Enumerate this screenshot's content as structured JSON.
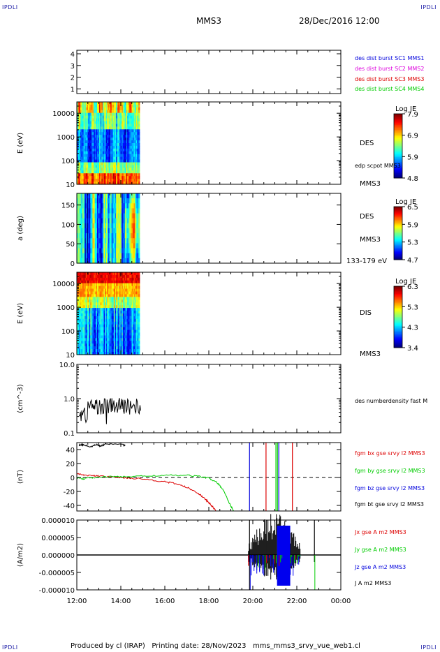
{
  "header": {
    "corner_label": "IPDLI",
    "spacecraft": "MMS3",
    "date": "28/Dec/2016 12:00"
  },
  "footer": {
    "text": "Produced by cl (IRAP)   Printing date: 28/Nov/2023   mms_mms3_srvy_vue_web1.cl"
  },
  "time_axis": {
    "ticks": [
      "12:00",
      "14:00",
      "16:00",
      "18:00",
      "20:00",
      "22:00",
      "00:00"
    ],
    "start_hour": 12,
    "end_hour": 24
  },
  "chart_data": [
    {
      "id": "sc-config",
      "type": "line",
      "yticks": [
        "1",
        "2",
        "3",
        "4"
      ],
      "ylim": [
        0.6,
        4.3
      ],
      "legend": [
        {
          "text": "des dist burst SC1 MMS1",
          "color": "#0000dd"
        },
        {
          "text": "des dist burst SC2 MMS2",
          "color": "#dd00dd"
        },
        {
          "text": "des dist burst SC3 MMS3",
          "color": "#dd0000"
        },
        {
          "text": "des dist burst SC4 MMS4",
          "color": "#00cc00"
        }
      ]
    },
    {
      "id": "des-energy",
      "type": "heatmap",
      "ylabel": "E (eV)",
      "yscale": "log",
      "yticks": [
        "10000",
        "1000",
        "100",
        "10"
      ],
      "ylim": [
        10,
        30000
      ],
      "data_end_hour": 14.85,
      "colorbar": {
        "title": "Log JE",
        "ticks": [
          "7.9",
          "6.9",
          "5.9",
          "4.8"
        ],
        "range": [
          4.8,
          7.9
        ]
      },
      "labels": [
        "DES",
        "edp scpot MMS3",
        "MMS3"
      ]
    },
    {
      "id": "des-pitch",
      "type": "heatmap",
      "ylabel": "a (deg)",
      "yticks": [
        "150",
        "100",
        "50",
        "0"
      ],
      "ylim": [
        0,
        180
      ],
      "data_end_hour": 14.85,
      "colorbar": {
        "title": "Log JE",
        "ticks": [
          "6.5",
          "5.9",
          "5.3",
          "4.7"
        ],
        "range": [
          4.7,
          6.5
        ]
      },
      "labels": [
        "DES",
        "MMS3",
        "133-179 eV"
      ]
    },
    {
      "id": "dis-energy",
      "type": "heatmap",
      "ylabel": "E (eV)",
      "yscale": "log",
      "yticks": [
        "10000",
        "1000",
        "100",
        "10"
      ],
      "ylim": [
        10,
        30000
      ],
      "data_end_hour": 14.85,
      "colorbar": {
        "title": "Log JE",
        "ticks": [
          "6.3",
          "5.3",
          "4.3",
          "3.4"
        ],
        "range": [
          3.4,
          6.3
        ]
      },
      "labels": [
        "DIS",
        "MMS3"
      ]
    },
    {
      "id": "density",
      "type": "line",
      "ylabel": "(cm^-3)",
      "yscale": "log",
      "yticks": [
        "10.0",
        "1.0",
        "0.1"
      ],
      "ylim": [
        0.1,
        10
      ],
      "legend": [
        {
          "text": "des numberdensity fast M",
          "color": "#000000"
        }
      ],
      "series": [
        {
          "name": "des numberdensity fast M",
          "color": "#000000",
          "x_range": [
            12.1,
            14.9
          ],
          "typical": 0.6
        }
      ]
    },
    {
      "id": "fgm",
      "type": "line",
      "ylabel": "(nT)",
      "yticks": [
        "40",
        "20",
        "0",
        "-20",
        "-40"
      ],
      "ylim": [
        -48,
        50
      ],
      "legend": [
        {
          "text": "fgm bx gse srvy l2 MMS3",
          "color": "#dd0000"
        },
        {
          "text": "fgm by gse srvy l2 MMS3",
          "color": "#00cc00"
        },
        {
          "text": "fgm bz gse srvy l2 MMS3",
          "color": "#0000dd"
        },
        {
          "text": "fgm bt gse srvy l2 MMS3",
          "color": "#000000"
        }
      ],
      "series": [
        {
          "name": "fgm bx gse srvy l2 MMS3",
          "color": "#dd0000",
          "x": [
            12.0,
            12.5,
            13.0,
            14.0,
            15.0,
            16.0,
            16.5,
            17.0,
            17.5,
            17.8,
            18.0,
            18.2,
            18.35
          ],
          "y": [
            5,
            3,
            2,
            0,
            -2,
            -6,
            -9,
            -14,
            -22,
            -30,
            -36,
            -43,
            -49
          ]
        },
        {
          "name": "fgm by gse srvy l2 MMS3",
          "color": "#00cc00",
          "x": [
            12.0,
            12.3,
            13.0,
            14.0,
            15.0,
            16.0,
            17.0,
            17.5,
            18.0,
            18.4,
            18.7,
            18.95,
            19.15
          ],
          "y": [
            0,
            -2,
            1,
            1,
            2,
            3,
            3,
            2,
            -1,
            -8,
            -20,
            -38,
            -49
          ]
        },
        {
          "name": "fgm bt gse srvy l2 MMS3",
          "color": "#000000",
          "x": [
            12.1,
            12.3,
            12.6,
            12.9,
            13.1,
            13.3,
            14.1,
            14.2
          ],
          "y": [
            46,
            47,
            44,
            47,
            45,
            48,
            47,
            46
          ]
        }
      ],
      "spikes": [
        {
          "x": 19.85,
          "color": "#0000dd"
        },
        {
          "x": 20.6,
          "color": "#dd0000"
        },
        {
          "x": 21.05,
          "color": "#00cc00"
        },
        {
          "x": 21.12,
          "color": "#00cc00"
        },
        {
          "x": 21.18,
          "color": "#0000dd"
        },
        {
          "x": 21.8,
          "color": "#dd0000"
        }
      ]
    },
    {
      "id": "current",
      "type": "line",
      "ylabel": "(A/m2)",
      "yticks": [
        "0.000010",
        "0.000005",
        "0.000000",
        "-0.000005",
        "-0.000010"
      ],
      "ylim": [
        -1e-05,
        1e-05
      ],
      "legend": [
        {
          "text": "Jx gse A m2 MMS3",
          "color": "#dd0000"
        },
        {
          "text": "Jy gse A m2 MMS3",
          "color": "#00cc00"
        },
        {
          "text": "Jz gse A m2 MMS3",
          "color": "#0000dd"
        },
        {
          "text": "J A m2 MMS3",
          "color": "#000000"
        }
      ],
      "burst_range": [
        19.8,
        22.8
      ]
    }
  ]
}
